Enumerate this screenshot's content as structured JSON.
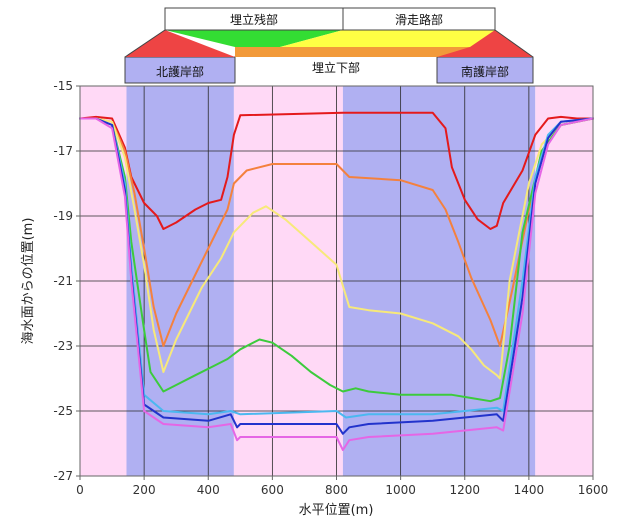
{
  "chart_data": {
    "type": "line",
    "xlabel": "水平位置(m)",
    "ylabel": "海水面からの位置(m)",
    "xlim": [
      0,
      1600
    ],
    "ylim": [
      -27,
      -15
    ],
    "x_ticks": [
      0,
      200,
      400,
      600,
      800,
      1000,
      1200,
      1400,
      1600
    ],
    "y_ticks": [
      -15,
      -17,
      -19,
      -21,
      -23,
      -25,
      -27
    ],
    "grid": true,
    "top_labels": {
      "reclaim_remaining": "埋立残部",
      "runway": "滑走路部",
      "north_revetment": "北護岸部",
      "reclaim_lower": "埋立下部",
      "south_revetment": "南護岸部"
    },
    "zones": [
      {
        "kind": "pink",
        "x_range": [
          0,
          145
        ]
      },
      {
        "kind": "blue",
        "x_range": [
          145,
          480
        ]
      },
      {
        "kind": "pink",
        "x_range": [
          480,
          820
        ]
      },
      {
        "kind": "blue",
        "x_range": [
          820,
          1420
        ]
      },
      {
        "kind": "pink",
        "x_range": [
          1420,
          1600
        ]
      }
    ],
    "zone_colors": {
      "pink": "#ffd9f6",
      "blue": "#b0b0f2"
    },
    "top_band_colors": {
      "red": "#ee4444",
      "green": "#33dd33",
      "yellow": "#ffff44",
      "orange": "#f29a3a"
    },
    "series": [
      {
        "color": "#e41a1c",
        "x": [
          0,
          50,
          100,
          140,
          160,
          200,
          240,
          260,
          300,
          360,
          400,
          440,
          460,
          480,
          500,
          820,
          1100,
          1140,
          1160,
          1200,
          1240,
          1280,
          1300,
          1320,
          1380,
          1420,
          1460,
          1500,
          1550,
          1600
        ],
        "y": [
          -16.0,
          -15.95,
          -16.0,
          -16.9,
          -17.8,
          -18.6,
          -19.0,
          -19.4,
          -19.2,
          -18.8,
          -18.6,
          -18.5,
          -17.8,
          -16.5,
          -15.9,
          -15.82,
          -15.82,
          -16.3,
          -17.5,
          -18.5,
          -19.1,
          -19.4,
          -19.3,
          -18.6,
          -17.6,
          -16.5,
          -16.0,
          -15.95,
          -16.0,
          -16.0
        ]
      },
      {
        "color": "#f4813e",
        "x": [
          0,
          50,
          100,
          140,
          170,
          200,
          230,
          260,
          300,
          360,
          420,
          460,
          480,
          520,
          600,
          800,
          840,
          1000,
          1100,
          1140,
          1180,
          1220,
          1280,
          1310,
          1350,
          1400,
          1440,
          1500,
          1600
        ],
        "y": [
          -16.0,
          -16.0,
          -16.1,
          -17.0,
          -18.3,
          -20.0,
          -21.8,
          -23.0,
          -22.0,
          -20.8,
          -19.6,
          -18.8,
          -18.0,
          -17.6,
          -17.4,
          -17.4,
          -17.8,
          -17.9,
          -18.2,
          -18.8,
          -19.8,
          -20.9,
          -22.2,
          -23.0,
          -21.2,
          -18.8,
          -17.0,
          -16.2,
          -16.0
        ]
      },
      {
        "color": "#f7e97a",
        "x": [
          0,
          50,
          100,
          140,
          170,
          200,
          230,
          260,
          300,
          380,
          440,
          480,
          540,
          580,
          640,
          720,
          800,
          840,
          900,
          1000,
          1100,
          1140,
          1180,
          1220,
          1260,
          1300,
          1310,
          1340,
          1400,
          1440,
          1500,
          1600
        ],
        "y": [
          -16.0,
          -16.0,
          -16.1,
          -17.2,
          -18.8,
          -20.5,
          -22.5,
          -23.8,
          -22.8,
          -21.2,
          -20.3,
          -19.5,
          -18.9,
          -18.7,
          -19.1,
          -19.8,
          -20.5,
          -21.8,
          -21.9,
          -22.0,
          -22.3,
          -22.5,
          -22.7,
          -23.1,
          -23.6,
          -23.9,
          -24.0,
          -21.0,
          -18.0,
          -16.8,
          -16.2,
          -16.0
        ]
      },
      {
        "color": "#3ccb3c",
        "x": [
          0,
          50,
          100,
          140,
          160,
          200,
          220,
          260,
          300,
          360,
          420,
          460,
          500,
          560,
          600,
          660,
          720,
          780,
          820,
          860,
          900,
          1000,
          1100,
          1160,
          1220,
          1280,
          1310,
          1340,
          1380,
          1440,
          1500,
          1600
        ],
        "y": [
          -16.0,
          -16.0,
          -16.2,
          -17.8,
          -19.8,
          -22.5,
          -23.8,
          -24.4,
          -24.2,
          -23.9,
          -23.6,
          -23.4,
          -23.1,
          -22.8,
          -22.9,
          -23.3,
          -23.8,
          -24.2,
          -24.4,
          -24.3,
          -24.4,
          -24.5,
          -24.5,
          -24.5,
          -24.6,
          -24.7,
          -24.6,
          -23.0,
          -19.5,
          -17.0,
          -16.2,
          -16.0
        ]
      },
      {
        "color": "#4bb8f0",
        "x": [
          0,
          50,
          100,
          140,
          160,
          200,
          260,
          400,
          470,
          500,
          800,
          830,
          900,
          1100,
          1300,
          1320,
          1380,
          1420,
          1460,
          1500,
          1600
        ],
        "y": [
          -16.0,
          -16.0,
          -16.2,
          -18.0,
          -20.5,
          -24.5,
          -25.0,
          -25.1,
          -25.0,
          -25.1,
          -25.0,
          -25.2,
          -25.1,
          -25.1,
          -24.9,
          -25.0,
          -21.0,
          -17.8,
          -16.5,
          -16.1,
          -16.0
        ]
      },
      {
        "color": "#2233cc",
        "x": [
          0,
          50,
          100,
          140,
          160,
          200,
          260,
          400,
          470,
          490,
          500,
          800,
          820,
          840,
          900,
          1100,
          1300,
          1320,
          1380,
          1420,
          1460,
          1500,
          1600
        ],
        "y": [
          -16.0,
          -16.0,
          -16.2,
          -18.2,
          -20.8,
          -24.8,
          -25.2,
          -25.3,
          -25.1,
          -25.5,
          -25.4,
          -25.4,
          -25.7,
          -25.5,
          -25.4,
          -25.3,
          -25.1,
          -25.3,
          -21.5,
          -18.0,
          -16.6,
          -16.1,
          -16.0
        ]
      },
      {
        "color": "#e566e5",
        "x": [
          0,
          50,
          100,
          140,
          160,
          200,
          260,
          400,
          470,
          490,
          500,
          800,
          820,
          840,
          900,
          1100,
          1300,
          1320,
          1380,
          1420,
          1460,
          1500,
          1600
        ],
        "y": [
          -16.0,
          -16.0,
          -16.3,
          -18.4,
          -21.0,
          -25.0,
          -25.4,
          -25.5,
          -25.4,
          -25.9,
          -25.8,
          -25.8,
          -26.2,
          -25.9,
          -25.8,
          -25.7,
          -25.5,
          -25.6,
          -22.0,
          -18.3,
          -16.8,
          -16.2,
          -16.0
        ]
      }
    ]
  }
}
